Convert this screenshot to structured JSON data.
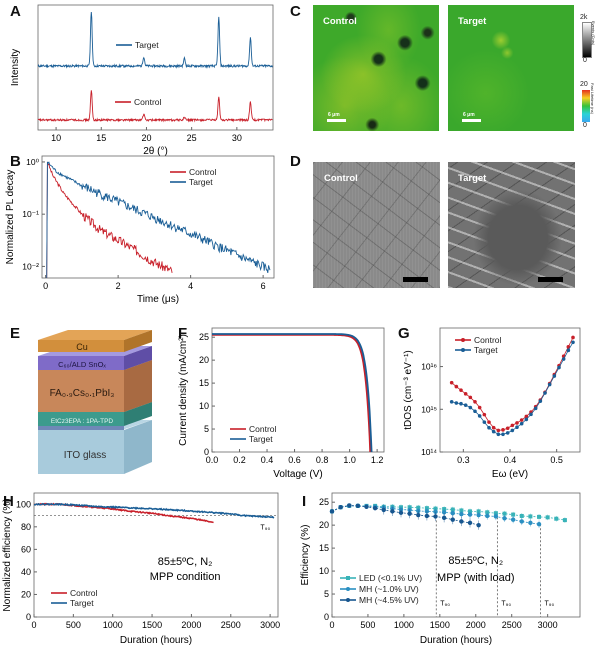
{
  "panels": {
    "A": "A",
    "B": "B",
    "C": "C",
    "D": "D",
    "E": "E",
    "F": "F",
    "G": "G",
    "H": "H",
    "I": "I"
  },
  "colors": {
    "control": "#c8202a",
    "target": "#1a5e96",
    "led": "#38b3b8",
    "mh1": "#2a8fc2",
    "mh45": "#17568f"
  },
  "chart_data": [
    {
      "id": "A",
      "type": "line",
      "title": "",
      "xlabel": "2θ (°)",
      "ylabel": "Intensity",
      "xlim": [
        8,
        34
      ],
      "xticks": [
        10,
        15,
        20,
        25,
        30
      ],
      "legend": [
        "Target",
        "Control"
      ],
      "series": [
        {
          "name": "Target",
          "offset": 1.0,
          "peaks": [
            [
              13.9,
              1.0
            ],
            [
              19.7,
              0.17
            ],
            [
              24.2,
              0.14
            ],
            [
              28.0,
              0.88
            ],
            [
              31.5,
              0.52
            ]
          ]
        },
        {
          "name": "Control",
          "offset": 0.0,
          "peaks": [
            [
              13.9,
              0.62
            ],
            [
              19.7,
              0.12
            ],
            [
              24.2,
              0.06
            ],
            [
              28.0,
              0.48
            ],
            [
              31.5,
              0.38
            ]
          ]
        }
      ]
    },
    {
      "id": "B",
      "type": "line",
      "xlabel": "Time (μs)",
      "ylabel": "Normalized PL decay",
      "xlim": [
        -0.1,
        6.3
      ],
      "ylim_log": [
        0.006,
        1.3
      ],
      "xticks": [
        0,
        2,
        4,
        6
      ],
      "yticks": [
        "10⁰",
        "10⁻¹",
        "10⁻²"
      ],
      "legend": [
        "Control",
        "Target"
      ],
      "series": [
        {
          "name": "Control",
          "x_end": 3.5,
          "points": [
            [
              0.05,
              1.0
            ],
            [
              0.2,
              0.55
            ],
            [
              0.5,
              0.25
            ],
            [
              1.0,
              0.1
            ],
            [
              1.5,
              0.05
            ],
            [
              2.0,
              0.032
            ],
            [
              2.5,
              0.02
            ],
            [
              3.0,
              0.012
            ],
            [
              3.5,
              0.008
            ]
          ]
        },
        {
          "name": "Target",
          "x_end": 6.2,
          "points": [
            [
              0.05,
              1.0
            ],
            [
              0.3,
              0.65
            ],
            [
              1.0,
              0.35
            ],
            [
              2.0,
              0.17
            ],
            [
              3.0,
              0.085
            ],
            [
              4.0,
              0.042
            ],
            [
              5.0,
              0.02
            ],
            [
              6.2,
              0.0085
            ]
          ]
        }
      ]
    },
    {
      "id": "F",
      "type": "line",
      "xlabel": "Voltage (V)",
      "ylabel": "Current density (mA/cm²)",
      "xlim": [
        0,
        1.25
      ],
      "ylim": [
        0,
        27
      ],
      "xticks": [
        "0.0",
        "0.2",
        "0.4",
        "0.6",
        "0.8",
        "1.0",
        "1.2"
      ],
      "yticks": [
        0,
        5,
        10,
        15,
        20,
        25
      ],
      "legend": [
        "Control",
        "Target"
      ],
      "series": [
        {
          "name": "Control",
          "jsc": 25.5,
          "voc": 1.15,
          "knee": 0.96
        },
        {
          "name": "Target",
          "jsc": 25.7,
          "voc": 1.16,
          "knee": 1.0
        }
      ]
    },
    {
      "id": "G",
      "type": "scatter",
      "xlabel": "Eω (eV)",
      "ylabel": "tDOS (cm⁻³ eV⁻¹)",
      "xlim": [
        0.25,
        0.55
      ],
      "ylim_log": [
        100000000000000.0,
        8e+16
      ],
      "xticks": [
        "0.3",
        "0.4",
        "0.5"
      ],
      "yticks": [
        "10¹⁴",
        "10¹⁵",
        "10¹⁶"
      ],
      "legend": [
        "Control",
        "Target"
      ],
      "series": [
        {
          "name": "Control",
          "x": [
            0.275,
            0.285,
            0.295,
            0.305,
            0.315,
            0.325,
            0.335,
            0.345,
            0.355,
            0.365,
            0.375,
            0.385,
            0.395,
            0.405,
            0.415,
            0.425,
            0.435,
            0.445,
            0.455,
            0.465,
            0.475,
            0.485,
            0.495,
            0.505,
            0.515,
            0.525,
            0.535
          ],
          "y": [
            4200000000000000.0,
            3400000000000000.0,
            2800000000000000.0,
            2300000000000000.0,
            1900000000000000.0,
            1500000000000000.0,
            1100000000000000.0,
            750000000000000.0,
            500000000000000.0,
            370000000000000.0,
            320000000000000.0,
            330000000000000.0,
            360000000000000.0,
            420000000000000.0,
            480000000000000.0,
            560000000000000.0,
            680000000000000.0,
            860000000000000.0,
            1150000000000000.0,
            1650000000000000.0,
            2500000000000000.0,
            4000000000000000.0,
            6500000000000000.0,
            1.05e+16,
            1.75e+16,
            2.9e+16,
            4.8e+16
          ]
        },
        {
          "name": "Target",
          "x": [
            0.275,
            0.285,
            0.295,
            0.305,
            0.315,
            0.325,
            0.335,
            0.345,
            0.355,
            0.365,
            0.375,
            0.385,
            0.395,
            0.405,
            0.415,
            0.425,
            0.435,
            0.445,
            0.455,
            0.465,
            0.475,
            0.485,
            0.495,
            0.505,
            0.515,
            0.525,
            0.535
          ],
          "y": [
            1500000000000000.0,
            1400000000000000.0,
            1350000000000000.0,
            1250000000000000.0,
            1100000000000000.0,
            900000000000000.0,
            700000000000000.0,
            500000000000000.0,
            370000000000000.0,
            300000000000000.0,
            260000000000000.0,
            260000000000000.0,
            280000000000000.0,
            320000000000000.0,
            380000000000000.0,
            460000000000000.0,
            580000000000000.0,
            760000000000000.0,
            1050000000000000.0,
            1550000000000000.0,
            2400000000000000.0,
            3800000000000000.0,
            6000000000000000.0,
            9500000000000000.0,
            1.5e+16,
            2.4e+16,
            3.7e+16
          ]
        }
      ]
    },
    {
      "id": "H",
      "type": "line",
      "xlabel": "Duration (hours)",
      "ylabel": "Normalized efficiency (%)",
      "xlim": [
        0,
        3100
      ],
      "ylim": [
        0,
        110
      ],
      "xticks": [
        0,
        500,
        1000,
        1500,
        2000,
        2500,
        3000
      ],
      "yticks": [
        0,
        20,
        40,
        60,
        80,
        100
      ],
      "reference_line": 90,
      "annotation": "T₉₀",
      "condition_line1": "85±5ºC, N₂",
      "condition_line2": "MPP condition",
      "legend": [
        "Control",
        "Target"
      ],
      "series": [
        {
          "name": "Control",
          "points": [
            [
              0,
              100
            ],
            [
              300,
              100
            ],
            [
              500,
              99
            ],
            [
              800,
              97
            ],
            [
              1000,
              96
            ],
            [
              1200,
              94
            ],
            [
              1500,
              92
            ],
            [
              1800,
              89
            ],
            [
              2000,
              87.5
            ],
            [
              2280,
              84
            ]
          ]
        },
        {
          "name": "Target",
          "points": [
            [
              0,
              100
            ],
            [
              300,
              100
            ],
            [
              500,
              99.5
            ],
            [
              800,
              98
            ],
            [
              1000,
              97.5
            ],
            [
              1500,
              96
            ],
            [
              2000,
              94
            ],
            [
              2500,
              91.5
            ],
            [
              2650,
              90
            ],
            [
              3050,
              88.5
            ]
          ]
        }
      ]
    },
    {
      "id": "I",
      "type": "scatter",
      "xlabel": "Duration (hours)",
      "ylabel": "Efficiency (%)",
      "xlim": [
        0,
        3450
      ],
      "ylim": [
        0,
        27
      ],
      "xticks": [
        0,
        500,
        1000,
        1500,
        2000,
        2500,
        3000
      ],
      "yticks": [
        0,
        5,
        10,
        15,
        20,
        25
      ],
      "t90_lines": [
        1450,
        2300,
        2900
      ],
      "t90_label": "T₉₀",
      "condition_line1": "85±5ºC, N₂",
      "condition_line2": "MPP (with load)",
      "legend": [
        "LED  (<0.1% UV)",
        "MH   (~1.0% UV)",
        "MH   (~4.5% UV)"
      ],
      "series": [
        {
          "name": "LED (<0.1% UV)",
          "x": [
            0,
            120,
            240,
            360,
            480,
            600,
            720,
            840,
            960,
            1080,
            1200,
            1320,
            1440,
            1560,
            1680,
            1800,
            1920,
            2040,
            2160,
            2280,
            2400,
            2520,
            2640,
            2760,
            2880,
            3000,
            3120,
            3240
          ],
          "y": [
            23.0,
            23.9,
            24.2,
            24.2,
            24.2,
            24.2,
            24.0,
            24.0,
            23.9,
            23.9,
            23.8,
            23.7,
            23.6,
            23.5,
            23.4,
            23.2,
            23.0,
            23.0,
            22.8,
            22.6,
            22.5,
            22.3,
            22.0,
            21.9,
            21.8,
            21.7,
            21.4,
            21.1
          ]
        },
        {
          "name": "MH (~1.0% UV)",
          "x": [
            0,
            120,
            240,
            360,
            480,
            600,
            720,
            840,
            960,
            1080,
            1200,
            1320,
            1440,
            1560,
            1680,
            1800,
            1920,
            2040,
            2160,
            2280,
            2400,
            2520,
            2640,
            2760,
            2880
          ],
          "y": [
            23.0,
            23.9,
            24.2,
            24.2,
            24.1,
            24.0,
            23.8,
            23.6,
            23.4,
            23.3,
            23.1,
            23.0,
            22.9,
            22.8,
            22.6,
            22.4,
            22.3,
            22.2,
            22.0,
            21.9,
            21.5,
            21.2,
            20.8,
            20.5,
            20.2
          ]
        },
        {
          "name": "MH (~4.5% UV)",
          "x": [
            0,
            120,
            240,
            360,
            480,
            600,
            720,
            840,
            960,
            1080,
            1200,
            1320,
            1440,
            1560,
            1680,
            1800,
            1920,
            2040
          ],
          "y": [
            23.0,
            23.9,
            24.3,
            24.2,
            24.0,
            23.7,
            23.3,
            23.0,
            22.7,
            22.5,
            22.2,
            22.0,
            21.9,
            21.6,
            21.2,
            20.8,
            20.5,
            20.0
          ]
        }
      ]
    }
  ],
  "imaging": {
    "C": {
      "left_label": "Control",
      "right_label": "Target",
      "scalebar": "6 μm",
      "colorbar_events": {
        "max": "2k",
        "min": "0",
        "label": "Events (Cnts)"
      },
      "colorbar_lifetime": {
        "max": "20",
        "min": "0",
        "label": "Fast Lifetime (ns)"
      }
    },
    "D": {
      "left_label": "Control",
      "right_label": "Target"
    }
  },
  "device_stack": {
    "layers": [
      "Cu",
      "C₆₀/ALD SnOₓ",
      "FA₀.₉Cs₀.₁PbI₃",
      "EtCz3EPA : 1PA-TPD",
      "ITO glass"
    ]
  }
}
